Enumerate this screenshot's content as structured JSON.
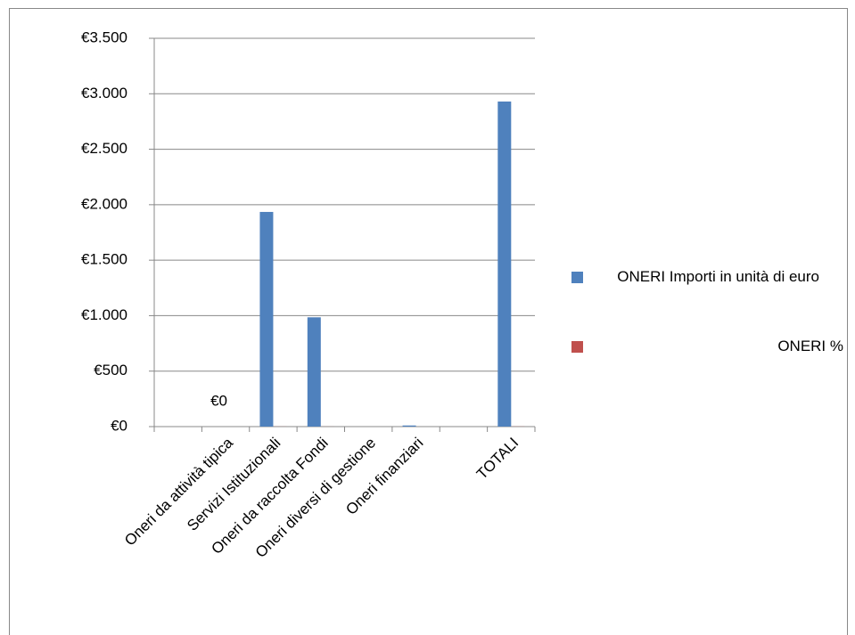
{
  "chart_data": {
    "type": "bar",
    "categories": [
      null,
      "Oneri da attività tipica",
      "Servizi Istituzionali",
      "Oneri da raccolta Fondi",
      "Oneri diversi di gestione",
      "Oneri finanziari",
      null,
      "TOTALI"
    ],
    "series": [
      {
        "name": "ONERI Importi in unità di euro",
        "color": "#4f81bd",
        "values": [
          null,
          0,
          1935,
          985,
          0,
          10,
          null,
          2930
        ],
        "value_labels": [
          null,
          "€0",
          null,
          null,
          null,
          null,
          null,
          null
        ]
      },
      {
        "name": "ONERI %",
        "color": "#c0504d",
        "values": [
          null,
          0,
          0.66,
          0.34,
          0,
          0,
          null,
          1
        ]
      }
    ],
    "ylim": [
      0,
      3500
    ],
    "yticks": [
      {
        "value": 0,
        "label": "€0"
      },
      {
        "value": 500,
        "label": "€500"
      },
      {
        "value": 1000,
        "label": "€1.000"
      },
      {
        "value": 1500,
        "label": "€1.500"
      },
      {
        "value": 2000,
        "label": "€2.000"
      },
      {
        "value": 2500,
        "label": "€2.500"
      },
      {
        "value": 3000,
        "label": "€3.000"
      },
      {
        "value": 3500,
        "label": "€3.500"
      }
    ],
    "grid": true
  }
}
